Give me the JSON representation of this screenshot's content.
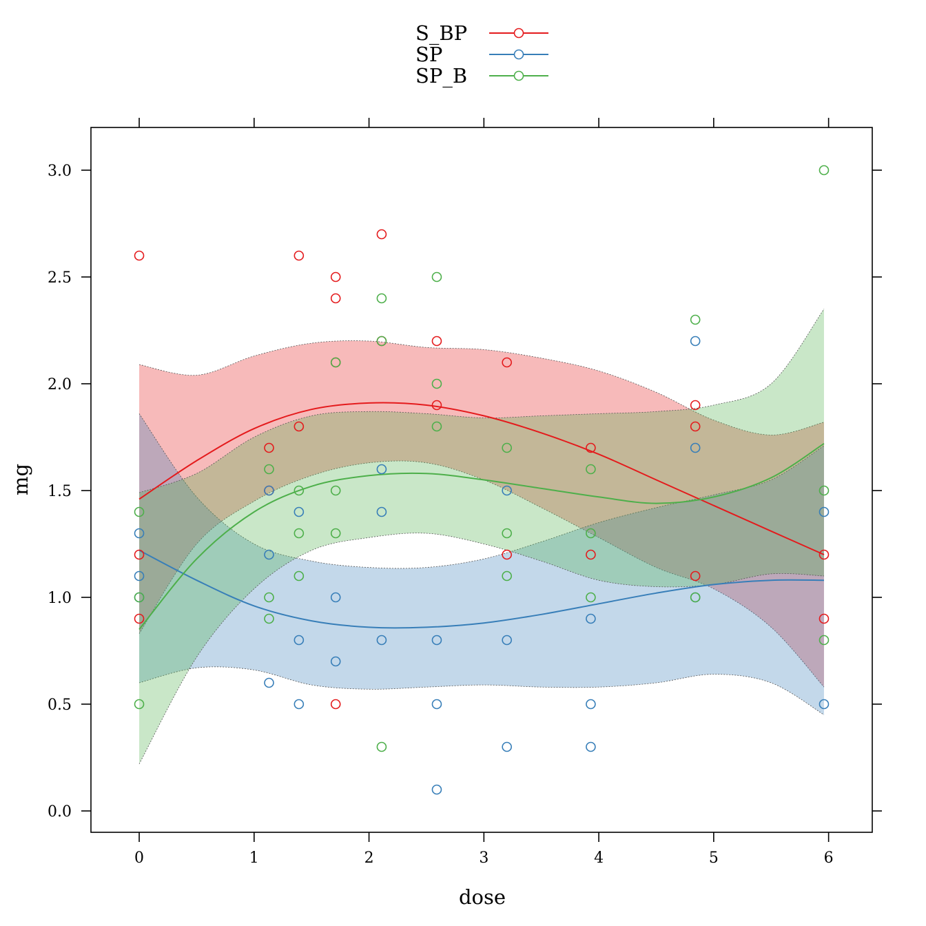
{
  "chart_data": {
    "type": "scatter",
    "title": "",
    "xlabel": "dose",
    "ylabel": "mg",
    "xlim": [
      -0.42,
      6.38
    ],
    "ylim": [
      -0.1,
      3.2
    ],
    "xticks": [
      0,
      1,
      2,
      3,
      4,
      5,
      6
    ],
    "xtick_labels": [
      "0",
      "1",
      "2",
      "3",
      "4",
      "5",
      "6"
    ],
    "yticks": [
      0.0,
      0.5,
      1.0,
      1.5,
      2.0,
      2.5,
      3.0
    ],
    "ytick_labels": [
      "0.0",
      "0.5",
      "1.0",
      "1.5",
      "2.0",
      "2.5",
      "3.0"
    ],
    "legend_position": "top",
    "grid": false,
    "series": [
      {
        "name": "S_BP",
        "color": "#e41a1c",
        "points": [
          [
            0,
            2.6
          ],
          [
            0,
            1.2
          ],
          [
            0,
            0.9
          ],
          [
            1.13,
            1.7
          ],
          [
            1.13,
            1.5
          ],
          [
            1.39,
            2.6
          ],
          [
            1.39,
            1.8
          ],
          [
            1.71,
            2.5
          ],
          [
            1.71,
            2.4
          ],
          [
            1.71,
            2.1
          ],
          [
            1.71,
            0.5
          ],
          [
            2.11,
            2.7
          ],
          [
            2.11,
            2.2
          ],
          [
            2.59,
            2.2
          ],
          [
            2.59,
            1.9
          ],
          [
            3.2,
            2.1
          ],
          [
            3.2,
            1.2
          ],
          [
            3.93,
            1.7
          ],
          [
            3.93,
            1.2
          ],
          [
            4.84,
            1.9
          ],
          [
            4.84,
            1.8
          ],
          [
            4.84,
            1.1
          ],
          [
            5.96,
            1.2
          ],
          [
            5.96,
            0.9
          ]
        ],
        "fit": {
          "x": [
            0,
            0.5,
            1,
            1.5,
            2,
            2.5,
            3,
            3.5,
            4,
            4.5,
            5,
            5.5,
            5.96
          ],
          "y": [
            1.46,
            1.64,
            1.79,
            1.88,
            1.91,
            1.9,
            1.85,
            1.77,
            1.67,
            1.55,
            1.43,
            1.31,
            1.2
          ]
        },
        "band_upper": {
          "x": [
            0,
            0.5,
            1,
            1.5,
            2,
            2.5,
            3,
            3.5,
            4,
            4.5,
            5,
            5.5,
            5.96
          ],
          "y": [
            2.09,
            2.04,
            2.13,
            2.19,
            2.2,
            2.17,
            2.16,
            2.12,
            2.06,
            1.96,
            1.83,
            1.76,
            1.82
          ]
        },
        "band_lower": {
          "x": [
            0,
            0.5,
            1,
            1.5,
            2,
            2.5,
            3,
            3.5,
            4,
            4.5,
            5,
            5.5,
            5.96
          ],
          "y": [
            0.83,
            1.25,
            1.45,
            1.57,
            1.63,
            1.63,
            1.55,
            1.42,
            1.28,
            1.14,
            1.04,
            0.86,
            0.58
          ]
        }
      },
      {
        "name": "SP",
        "color": "#377eb8",
        "points": [
          [
            0,
            1.3
          ],
          [
            0,
            1.1
          ],
          [
            0,
            1.0
          ],
          [
            1.13,
            1.5
          ],
          [
            1.13,
            1.2
          ],
          [
            1.13,
            0.6
          ],
          [
            1.39,
            1.4
          ],
          [
            1.39,
            0.8
          ],
          [
            1.39,
            0.5
          ],
          [
            1.71,
            1.0
          ],
          [
            1.71,
            0.7
          ],
          [
            2.11,
            1.6
          ],
          [
            2.11,
            1.4
          ],
          [
            2.11,
            0.8
          ],
          [
            2.59,
            0.8
          ],
          [
            2.59,
            0.5
          ],
          [
            2.59,
            0.1
          ],
          [
            3.2,
            1.5
          ],
          [
            3.2,
            0.8
          ],
          [
            3.2,
            0.3
          ],
          [
            3.93,
            0.9
          ],
          [
            3.93,
            0.5
          ],
          [
            3.93,
            0.3
          ],
          [
            4.84,
            2.2
          ],
          [
            4.84,
            1.7
          ],
          [
            4.84,
            1.0
          ],
          [
            5.96,
            1.4
          ],
          [
            5.96,
            0.5
          ]
        ],
        "fit": {
          "x": [
            0,
            0.5,
            1,
            1.5,
            2,
            2.5,
            3,
            3.5,
            4,
            4.5,
            5,
            5.5,
            5.96
          ],
          "y": [
            1.22,
            1.08,
            0.96,
            0.89,
            0.86,
            0.86,
            0.88,
            0.92,
            0.97,
            1.02,
            1.06,
            1.08,
            1.08
          ]
        },
        "band_upper": {
          "x": [
            0,
            0.5,
            1,
            1.5,
            2,
            2.5,
            3,
            3.5,
            4,
            4.5,
            5,
            5.5,
            5.96
          ],
          "y": [
            1.86,
            1.47,
            1.25,
            1.17,
            1.14,
            1.14,
            1.18,
            1.26,
            1.35,
            1.42,
            1.48,
            1.55,
            1.71
          ]
        },
        "band_lower": {
          "x": [
            0,
            0.5,
            1,
            1.5,
            2,
            2.5,
            3,
            3.5,
            4,
            4.5,
            5,
            5.5,
            5.96
          ],
          "y": [
            0.6,
            0.67,
            0.66,
            0.59,
            0.57,
            0.58,
            0.59,
            0.58,
            0.58,
            0.6,
            0.64,
            0.6,
            0.45
          ]
        }
      },
      {
        "name": "SP_B",
        "color": "#4daf4a",
        "points": [
          [
            0,
            1.4
          ],
          [
            0,
            1.0
          ],
          [
            0,
            0.5
          ],
          [
            1.13,
            1.6
          ],
          [
            1.13,
            1.0
          ],
          [
            1.13,
            0.9
          ],
          [
            1.39,
            1.5
          ],
          [
            1.39,
            1.3
          ],
          [
            1.39,
            1.1
          ],
          [
            1.71,
            2.1
          ],
          [
            1.71,
            1.5
          ],
          [
            1.71,
            1.3
          ],
          [
            2.11,
            2.4
          ],
          [
            2.11,
            2.2
          ],
          [
            2.11,
            0.3
          ],
          [
            2.59,
            2.5
          ],
          [
            2.59,
            2.0
          ],
          [
            2.59,
            1.8
          ],
          [
            3.2,
            1.7
          ],
          [
            3.2,
            1.3
          ],
          [
            3.2,
            1.1
          ],
          [
            3.93,
            1.6
          ],
          [
            3.93,
            1.3
          ],
          [
            3.93,
            1.0
          ],
          [
            4.84,
            2.3
          ],
          [
            4.84,
            1.0
          ],
          [
            5.96,
            3.0
          ],
          [
            5.96,
            1.5
          ],
          [
            5.96,
            0.8
          ]
        ],
        "fit": {
          "x": [
            0,
            0.5,
            1,
            1.5,
            2,
            2.5,
            3,
            3.5,
            4,
            4.5,
            5,
            5.5,
            5.96
          ],
          "y": [
            0.85,
            1.18,
            1.4,
            1.52,
            1.57,
            1.58,
            1.55,
            1.51,
            1.47,
            1.44,
            1.47,
            1.56,
            1.72
          ]
        },
        "band_upper": {
          "x": [
            0,
            0.5,
            1,
            1.5,
            2,
            2.5,
            3,
            3.5,
            4,
            4.5,
            5,
            5.5,
            5.96
          ],
          "y": [
            1.49,
            1.58,
            1.75,
            1.85,
            1.87,
            1.86,
            1.84,
            1.85,
            1.86,
            1.87,
            1.9,
            2.0,
            2.35
          ]
        },
        "band_lower": {
          "x": [
            0,
            0.5,
            1,
            1.5,
            2,
            2.5,
            3,
            3.5,
            4,
            4.5,
            5,
            5.5,
            5.96
          ],
          "y": [
            0.22,
            0.72,
            1.04,
            1.22,
            1.28,
            1.3,
            1.25,
            1.17,
            1.08,
            1.05,
            1.06,
            1.11,
            1.1
          ]
        }
      }
    ]
  }
}
